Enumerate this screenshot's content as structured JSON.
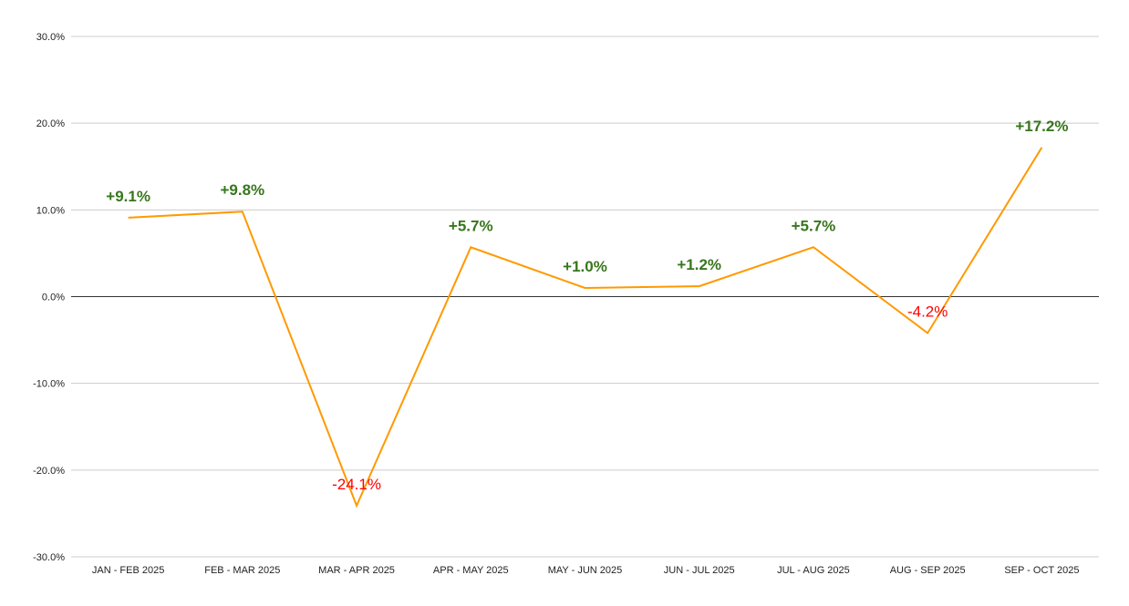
{
  "chart_data": {
    "type": "line",
    "title": "",
    "xlabel": "",
    "ylabel": "",
    "categories": [
      "JAN - FEB 2025",
      "FEB - MAR 2025",
      "MAR - APR 2025",
      "APR - MAY 2025",
      "MAY - JUN 2025",
      "JUN - JUL 2025",
      "JUL - AUG 2025",
      "AUG - SEP 2025",
      "SEP - OCT 2025"
    ],
    "series": [
      {
        "values": [
          9.1,
          9.8,
          -24.1,
          5.7,
          1.0,
          1.2,
          5.7,
          -4.2,
          17.2
        ],
        "data_labels": [
          "+9.1%",
          "+9.8%",
          "-24.1%",
          "+5.7%",
          "+1.0%",
          "+1.2%",
          "+5.7%",
          "-4.2%",
          "+17.2%"
        ],
        "color": "#ff9900"
      }
    ],
    "ylim": [
      -30,
      30
    ],
    "yticks": [
      30,
      20,
      10,
      0,
      -10,
      -20,
      -30
    ],
    "ytick_labels": [
      "30.0%",
      "20.0%",
      "10.0%",
      "0.0%",
      "-10.0%",
      "-20.0%",
      "-30.0%"
    ],
    "grid": true,
    "legend": "none",
    "colors": {
      "line": "#ff9900",
      "positive_label": "#38761d",
      "negative_label": "#ff0000",
      "grid": "#cccccc",
      "zero_line": "#333333"
    }
  }
}
